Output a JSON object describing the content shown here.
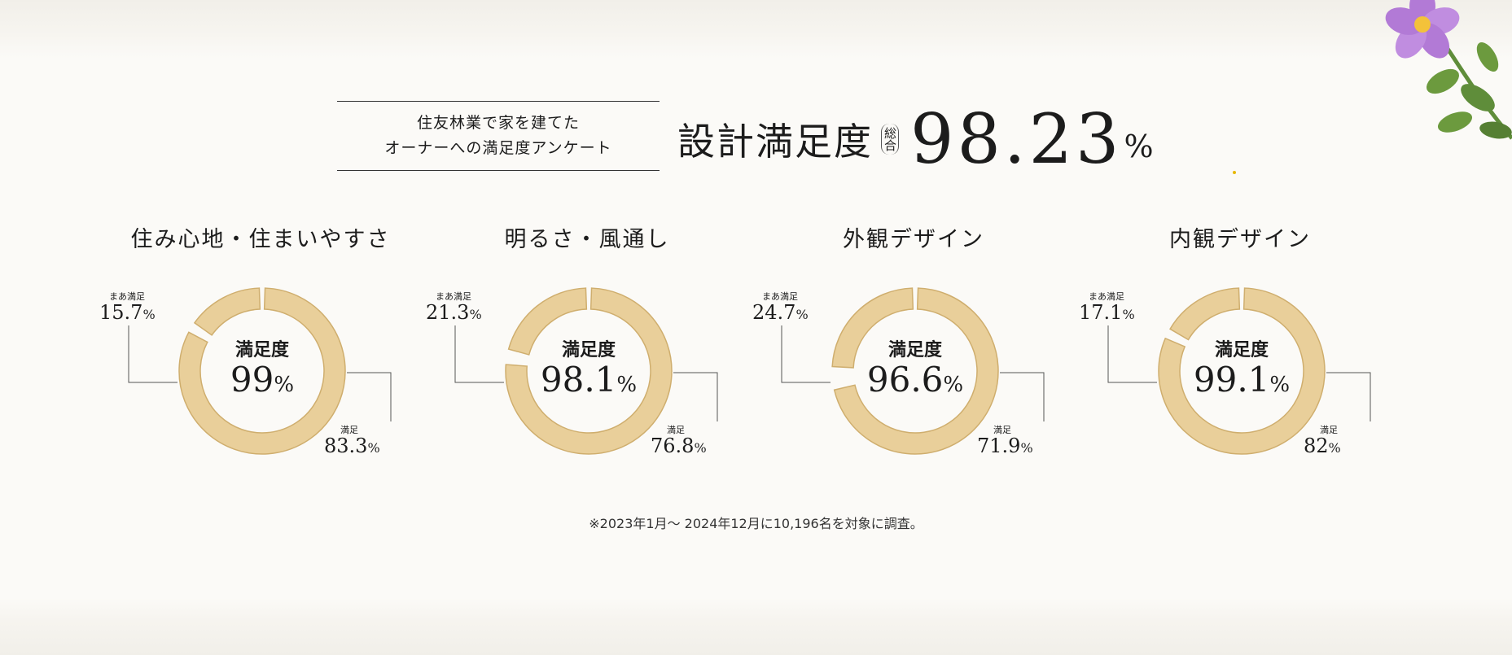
{
  "header": {
    "survey_line1": "住友林業で家を建てた",
    "survey_line2": "オーナーへの満足度アンケート",
    "headline_label": "設計満足度",
    "headline_sub": "総合",
    "headline_value": "98.23",
    "headline_unit": "%"
  },
  "center_label": "満足度",
  "small_label_left": "まあ満足",
  "small_label_right": "満足",
  "percent_unit": "%",
  "footnote": "※2023年1月〜 2024年12月に10,196名を対象に調査。",
  "colors": {
    "wood": "#e9cf9a",
    "wood_dark": "#cfae6e",
    "leader": "#555555"
  },
  "chart_data": [
    {
      "type": "pie",
      "title": "住み心地・住まいやすさ",
      "total": "99",
      "series": [
        {
          "name": "満足",
          "value": 83.3,
          "label": "83.3"
        },
        {
          "name": "まあ満足",
          "value": 15.7,
          "label": "15.7"
        }
      ]
    },
    {
      "type": "pie",
      "title": "明るさ・風通し",
      "total": "98.1",
      "series": [
        {
          "name": "満足",
          "value": 76.8,
          "label": "76.8"
        },
        {
          "name": "まあ満足",
          "value": 21.3,
          "label": "21.3"
        }
      ]
    },
    {
      "type": "pie",
      "title": "外観デザイン",
      "total": "96.6",
      "series": [
        {
          "name": "満足",
          "value": 71.9,
          "label": "71.9"
        },
        {
          "name": "まあ満足",
          "value": 24.7,
          "label": "24.7"
        }
      ]
    },
    {
      "type": "pie",
      "title": "内観デザイン",
      "total": "99.1",
      "series": [
        {
          "name": "満足",
          "value": 82,
          "label": "82"
        },
        {
          "name": "まあ満足",
          "value": 17.1,
          "label": "17.1"
        }
      ]
    }
  ]
}
